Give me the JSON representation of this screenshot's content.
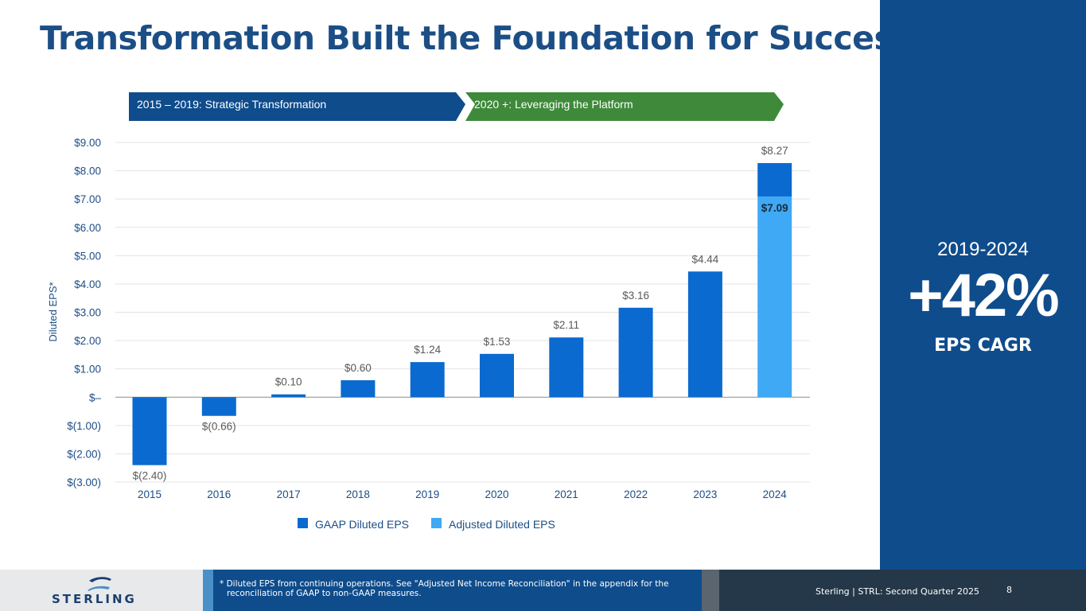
{
  "title": "Transformation Built the Foundation for Success",
  "phases": [
    {
      "label": "2015 – 2019: Strategic Transformation",
      "color": "#0f4c8c"
    },
    {
      "label": "2020 +: Leveraging the Platform",
      "color": "#3e8a3a"
    }
  ],
  "callout": {
    "years": "2019-2024",
    "value": "+42%",
    "label": "EPS CAGR"
  },
  "chart_data": {
    "type": "bar",
    "title": "",
    "xlabel": "",
    "ylabel": "Diluted EPS*",
    "ylim": [
      -3,
      9
    ],
    "yticks": [
      9,
      8,
      7,
      6,
      5,
      4,
      3,
      2,
      1,
      0,
      -1,
      -2,
      -3
    ],
    "ytick_labels": [
      "$9.00",
      "$8.00",
      "$7.00",
      "$6.00",
      "$5.00",
      "$4.00",
      "$3.00",
      "$2.00",
      "$1.00",
      "$–",
      "$(1.00)",
      "$(2.00)",
      "$(3.00)"
    ],
    "categories": [
      "2015",
      "2016",
      "2017",
      "2018",
      "2019",
      "2020",
      "2021",
      "2022",
      "2023",
      "2024"
    ],
    "series": [
      {
        "name": "GAAP Diluted EPS",
        "color": "#0a6ad0",
        "values": [
          -2.4,
          -0.66,
          0.1,
          0.6,
          1.24,
          1.53,
          2.11,
          3.16,
          4.44,
          8.27
        ],
        "labels": [
          "$(2.40)",
          "$(0.66)",
          "$0.10",
          "$0.60",
          "$1.24",
          "$1.53",
          "$2.11",
          "$3.16",
          "$4.44",
          "$8.27"
        ]
      },
      {
        "name": "Adjusted Diluted EPS",
        "color": "#3fa9f5",
        "values": [
          null,
          null,
          null,
          null,
          null,
          null,
          null,
          null,
          null,
          7.09
        ],
        "labels": [
          "",
          "",
          "",
          "",
          "",
          "",
          "",
          "",
          "",
          "$7.09"
        ]
      }
    ],
    "legend_position": "bottom-center",
    "grid": true
  },
  "footer": {
    "logo_text": "STERLING",
    "note_line1": "* Diluted EPS from continuing operations. See \"Adjusted Net Income Reconciliation\" in the appendix for the",
    "note_line2": "reconciliation of GAAP to non-GAAP measures.",
    "source": "Sterling | STRL:  Second Quarter 2025",
    "page": "8"
  }
}
